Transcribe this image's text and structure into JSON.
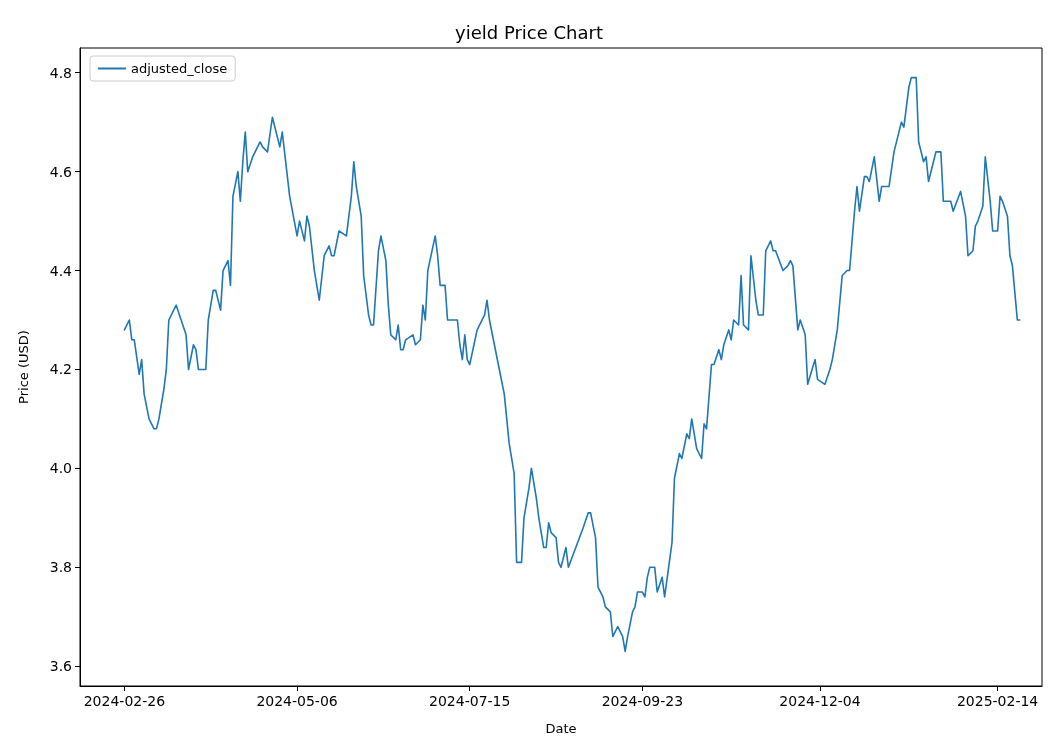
{
  "chart_data": {
    "type": "line",
    "title": "yield Price Chart",
    "xlabel": "Date",
    "ylabel": "Price (USD)",
    "x": [
      "2024-02-26",
      "2024-02-28",
      "2024-02-29",
      "2024-03-01",
      "2024-03-03",
      "2024-03-04",
      "2024-03-05",
      "2024-03-07",
      "2024-03-09",
      "2024-03-10",
      "2024-03-11",
      "2024-03-13",
      "2024-03-14",
      "2024-03-15",
      "2024-03-18",
      "2024-03-20",
      "2024-03-22",
      "2024-03-23",
      "2024-03-25",
      "2024-03-26",
      "2024-03-27",
      "2024-03-30",
      "2024-03-31",
      "2024-04-02",
      "2024-04-03",
      "2024-04-05",
      "2024-04-06",
      "2024-04-08",
      "2024-04-09",
      "2024-04-10",
      "2024-04-12",
      "2024-04-13",
      "2024-04-14",
      "2024-04-15",
      "2024-04-16",
      "2024-04-18",
      "2024-04-21",
      "2024-04-22",
      "2024-04-24",
      "2024-04-26",
      "2024-04-29",
      "2024-04-30",
      "2024-05-03",
      "2024-05-06",
      "2024-05-07",
      "2024-05-09",
      "2024-05-10",
      "2024-05-11",
      "2024-05-13",
      "2024-05-15",
      "2024-05-17",
      "2024-05-19",
      "2024-05-20",
      "2024-05-21",
      "2024-05-23",
      "2024-05-26",
      "2024-05-28",
      "2024-05-29",
      "2024-05-30",
      "2024-06-01",
      "2024-06-02",
      "2024-06-04",
      "2024-06-05",
      "2024-06-06",
      "2024-06-08",
      "2024-06-09",
      "2024-06-11",
      "2024-06-12",
      "2024-06-13",
      "2024-06-15",
      "2024-06-16",
      "2024-06-17",
      "2024-06-18",
      "2024-06-19",
      "2024-06-22",
      "2024-06-23",
      "2024-06-25",
      "2024-06-26",
      "2024-06-27",
      "2024-06-28",
      "2024-07-01",
      "2024-07-02",
      "2024-07-03",
      "2024-07-05",
      "2024-07-06",
      "2024-07-09",
      "2024-07-10",
      "2024-07-11",
      "2024-07-12",
      "2024-07-13",
      "2024-07-14",
      "2024-07-15",
      "2024-07-18",
      "2024-07-21",
      "2024-07-22",
      "2024-07-23",
      "2024-07-25",
      "2024-07-27",
      "2024-07-29",
      "2024-07-31",
      "2024-08-02",
      "2024-08-03",
      "2024-08-05",
      "2024-08-06",
      "2024-08-08",
      "2024-08-09",
      "2024-08-11",
      "2024-08-12",
      "2024-08-14",
      "2024-08-15",
      "2024-08-16",
      "2024-08-17",
      "2024-08-19",
      "2024-08-20",
      "2024-08-21",
      "2024-08-23",
      "2024-08-24",
      "2024-08-27",
      "2024-08-30",
      "2024-09-01",
      "2024-09-02",
      "2024-09-04",
      "2024-09-05",
      "2024-09-07",
      "2024-09-08",
      "2024-09-10",
      "2024-09-11",
      "2024-09-12",
      "2024-09-13",
      "2024-09-15",
      "2024-09-16",
      "2024-09-17",
      "2024-09-19",
      "2024-09-20",
      "2024-09-21",
      "2024-09-23",
      "2024-09-24",
      "2024-09-25",
      "2024-09-26",
      "2024-09-28",
      "2024-09-29",
      "2024-10-01",
      "2024-10-02",
      "2024-10-05",
      "2024-10-06",
      "2024-10-08",
      "2024-10-09",
      "2024-10-11",
      "2024-10-12",
      "2024-10-13",
      "2024-10-15",
      "2024-10-17",
      "2024-10-18",
      "2024-10-19",
      "2024-10-21",
      "2024-10-22",
      "2024-10-24",
      "2024-10-25",
      "2024-10-26",
      "2024-10-28",
      "2024-10-29",
      "2024-10-30",
      "2024-11-01",
      "2024-11-02",
      "2024-11-03",
      "2024-11-05",
      "2024-11-06",
      "2024-11-08",
      "2024-11-09",
      "2024-11-11",
      "2024-11-12",
      "2024-11-14",
      "2024-11-15",
      "2024-11-16",
      "2024-11-19",
      "2024-11-21",
      "2024-11-22",
      "2024-11-23",
      "2024-11-25",
      "2024-11-26",
      "2024-11-28",
      "2024-11-29",
      "2024-12-02",
      "2024-12-03",
      "2024-12-06",
      "2024-12-08",
      "2024-12-09",
      "2024-12-11",
      "2024-12-13",
      "2024-12-15",
      "2024-12-16",
      "2024-12-18",
      "2024-12-19",
      "2024-12-20",
      "2024-12-22",
      "2024-12-23",
      "2024-12-24",
      "2024-12-26",
      "2024-12-28",
      "2024-12-29",
      "2024-12-30",
      "2025-01-01",
      "2025-01-03",
      "2025-01-05",
      "2025-01-06",
      "2025-01-07",
      "2025-01-09",
      "2025-01-10",
      "2025-01-12",
      "2025-01-13",
      "2025-01-15",
      "2025-01-16",
      "2025-01-17",
      "2025-01-19",
      "2025-01-20",
      "2025-01-22",
      "2025-01-23",
      "2025-01-25",
      "2025-01-26",
      "2025-01-27",
      "2025-01-30",
      "2025-02-01",
      "2025-02-02",
      "2025-02-04",
      "2025-02-05",
      "2025-02-06",
      "2025-02-08",
      "2025-02-09",
      "2025-02-11",
      "2025-02-12",
      "2025-02-14",
      "2025-02-15",
      "2025-02-16",
      "2025-02-18",
      "2025-02-19",
      "2025-02-20",
      "2025-02-22",
      "2025-02-23"
    ],
    "series": [
      {
        "name": "adjusted_close",
        "color": "#1f77b4",
        "values": [
          4.28,
          4.3,
          4.26,
          4.26,
          4.19,
          4.22,
          4.15,
          4.1,
          4.08,
          4.08,
          4.1,
          4.16,
          4.2,
          4.3,
          4.33,
          4.3,
          4.27,
          4.2,
          4.25,
          4.24,
          4.2,
          4.2,
          4.3,
          4.36,
          4.36,
          4.32,
          4.4,
          4.42,
          4.37,
          4.55,
          4.6,
          4.54,
          4.62,
          4.68,
          4.6,
          4.63,
          4.66,
          4.65,
          4.64,
          4.71,
          4.65,
          4.68,
          4.55,
          4.47,
          4.5,
          4.46,
          4.51,
          4.49,
          4.4,
          4.34,
          4.43,
          4.45,
          4.43,
          4.43,
          4.48,
          4.47,
          4.55,
          4.62,
          4.57,
          4.51,
          4.39,
          4.31,
          4.29,
          4.29,
          4.44,
          4.47,
          4.42,
          4.33,
          4.27,
          4.26,
          4.29,
          4.24,
          4.24,
          4.26,
          4.27,
          4.25,
          4.26,
          4.33,
          4.3,
          4.4,
          4.47,
          4.43,
          4.37,
          4.37,
          4.3,
          4.3,
          4.3,
          4.25,
          4.22,
          4.27,
          4.22,
          4.21,
          4.28,
          4.31,
          4.34,
          4.3,
          4.25,
          4.2,
          4.15,
          4.05,
          3.99,
          3.81,
          3.81,
          3.9,
          3.96,
          4.0,
          3.94,
          3.9,
          3.84,
          3.84,
          3.89,
          3.87,
          3.86,
          3.81,
          3.8,
          3.84,
          3.8,
          3.84,
          3.88,
          3.91,
          3.91,
          3.86,
          3.76,
          3.74,
          3.72,
          3.71,
          3.66,
          3.67,
          3.68,
          3.66,
          3.63,
          3.66,
          3.71,
          3.72,
          3.75,
          3.75,
          3.74,
          3.78,
          3.8,
          3.8,
          3.75,
          3.78,
          3.74,
          3.85,
          3.98,
          4.03,
          4.02,
          4.07,
          4.06,
          4.1,
          4.04,
          4.02,
          4.09,
          4.08,
          4.21,
          4.21,
          4.24,
          4.22,
          4.25,
          4.28,
          4.26,
          4.3,
          4.29,
          4.39,
          4.29,
          4.28,
          4.43,
          4.34,
          4.31,
          4.31,
          4.44,
          4.46,
          4.44,
          4.44,
          4.4,
          4.41,
          4.42,
          4.41,
          4.28,
          4.3,
          4.27,
          4.17,
          4.22,
          4.18,
          4.17,
          4.2,
          4.22,
          4.28,
          4.39,
          4.4,
          4.4,
          4.52,
          4.57,
          4.52,
          4.59,
          4.59,
          4.58,
          4.63,
          4.54,
          4.57,
          4.57,
          4.57,
          4.64,
          4.68,
          4.7,
          4.69,
          4.77,
          4.79,
          4.79,
          4.66,
          4.62,
          4.63,
          4.58,
          4.62,
          4.64,
          4.64,
          4.54,
          4.54,
          4.54,
          4.52,
          4.56,
          4.51,
          4.43,
          4.44,
          4.49,
          4.5,
          4.53,
          4.63,
          4.54,
          4.48,
          4.48,
          4.55,
          4.54,
          4.51,
          4.43,
          4.41,
          4.3,
          4.3
        ]
      }
    ],
    "xlim": [
      "2024-02-08",
      "2025-03-04"
    ],
    "xticks": [
      "2024-02-26",
      "2024-05-06",
      "2024-07-15",
      "2024-09-23",
      "2024-12-04",
      "2025-02-14"
    ],
    "ylim": [
      3.56,
      4.85
    ],
    "yticks": [
      3.6,
      3.8,
      {
        "value": 4,
        "label": "4.0"
      },
      4.2,
      4.4,
      4.6,
      4.8
    ],
    "legend": "top left",
    "grid": false,
    "marker": "none",
    "line_style": "solid"
  }
}
